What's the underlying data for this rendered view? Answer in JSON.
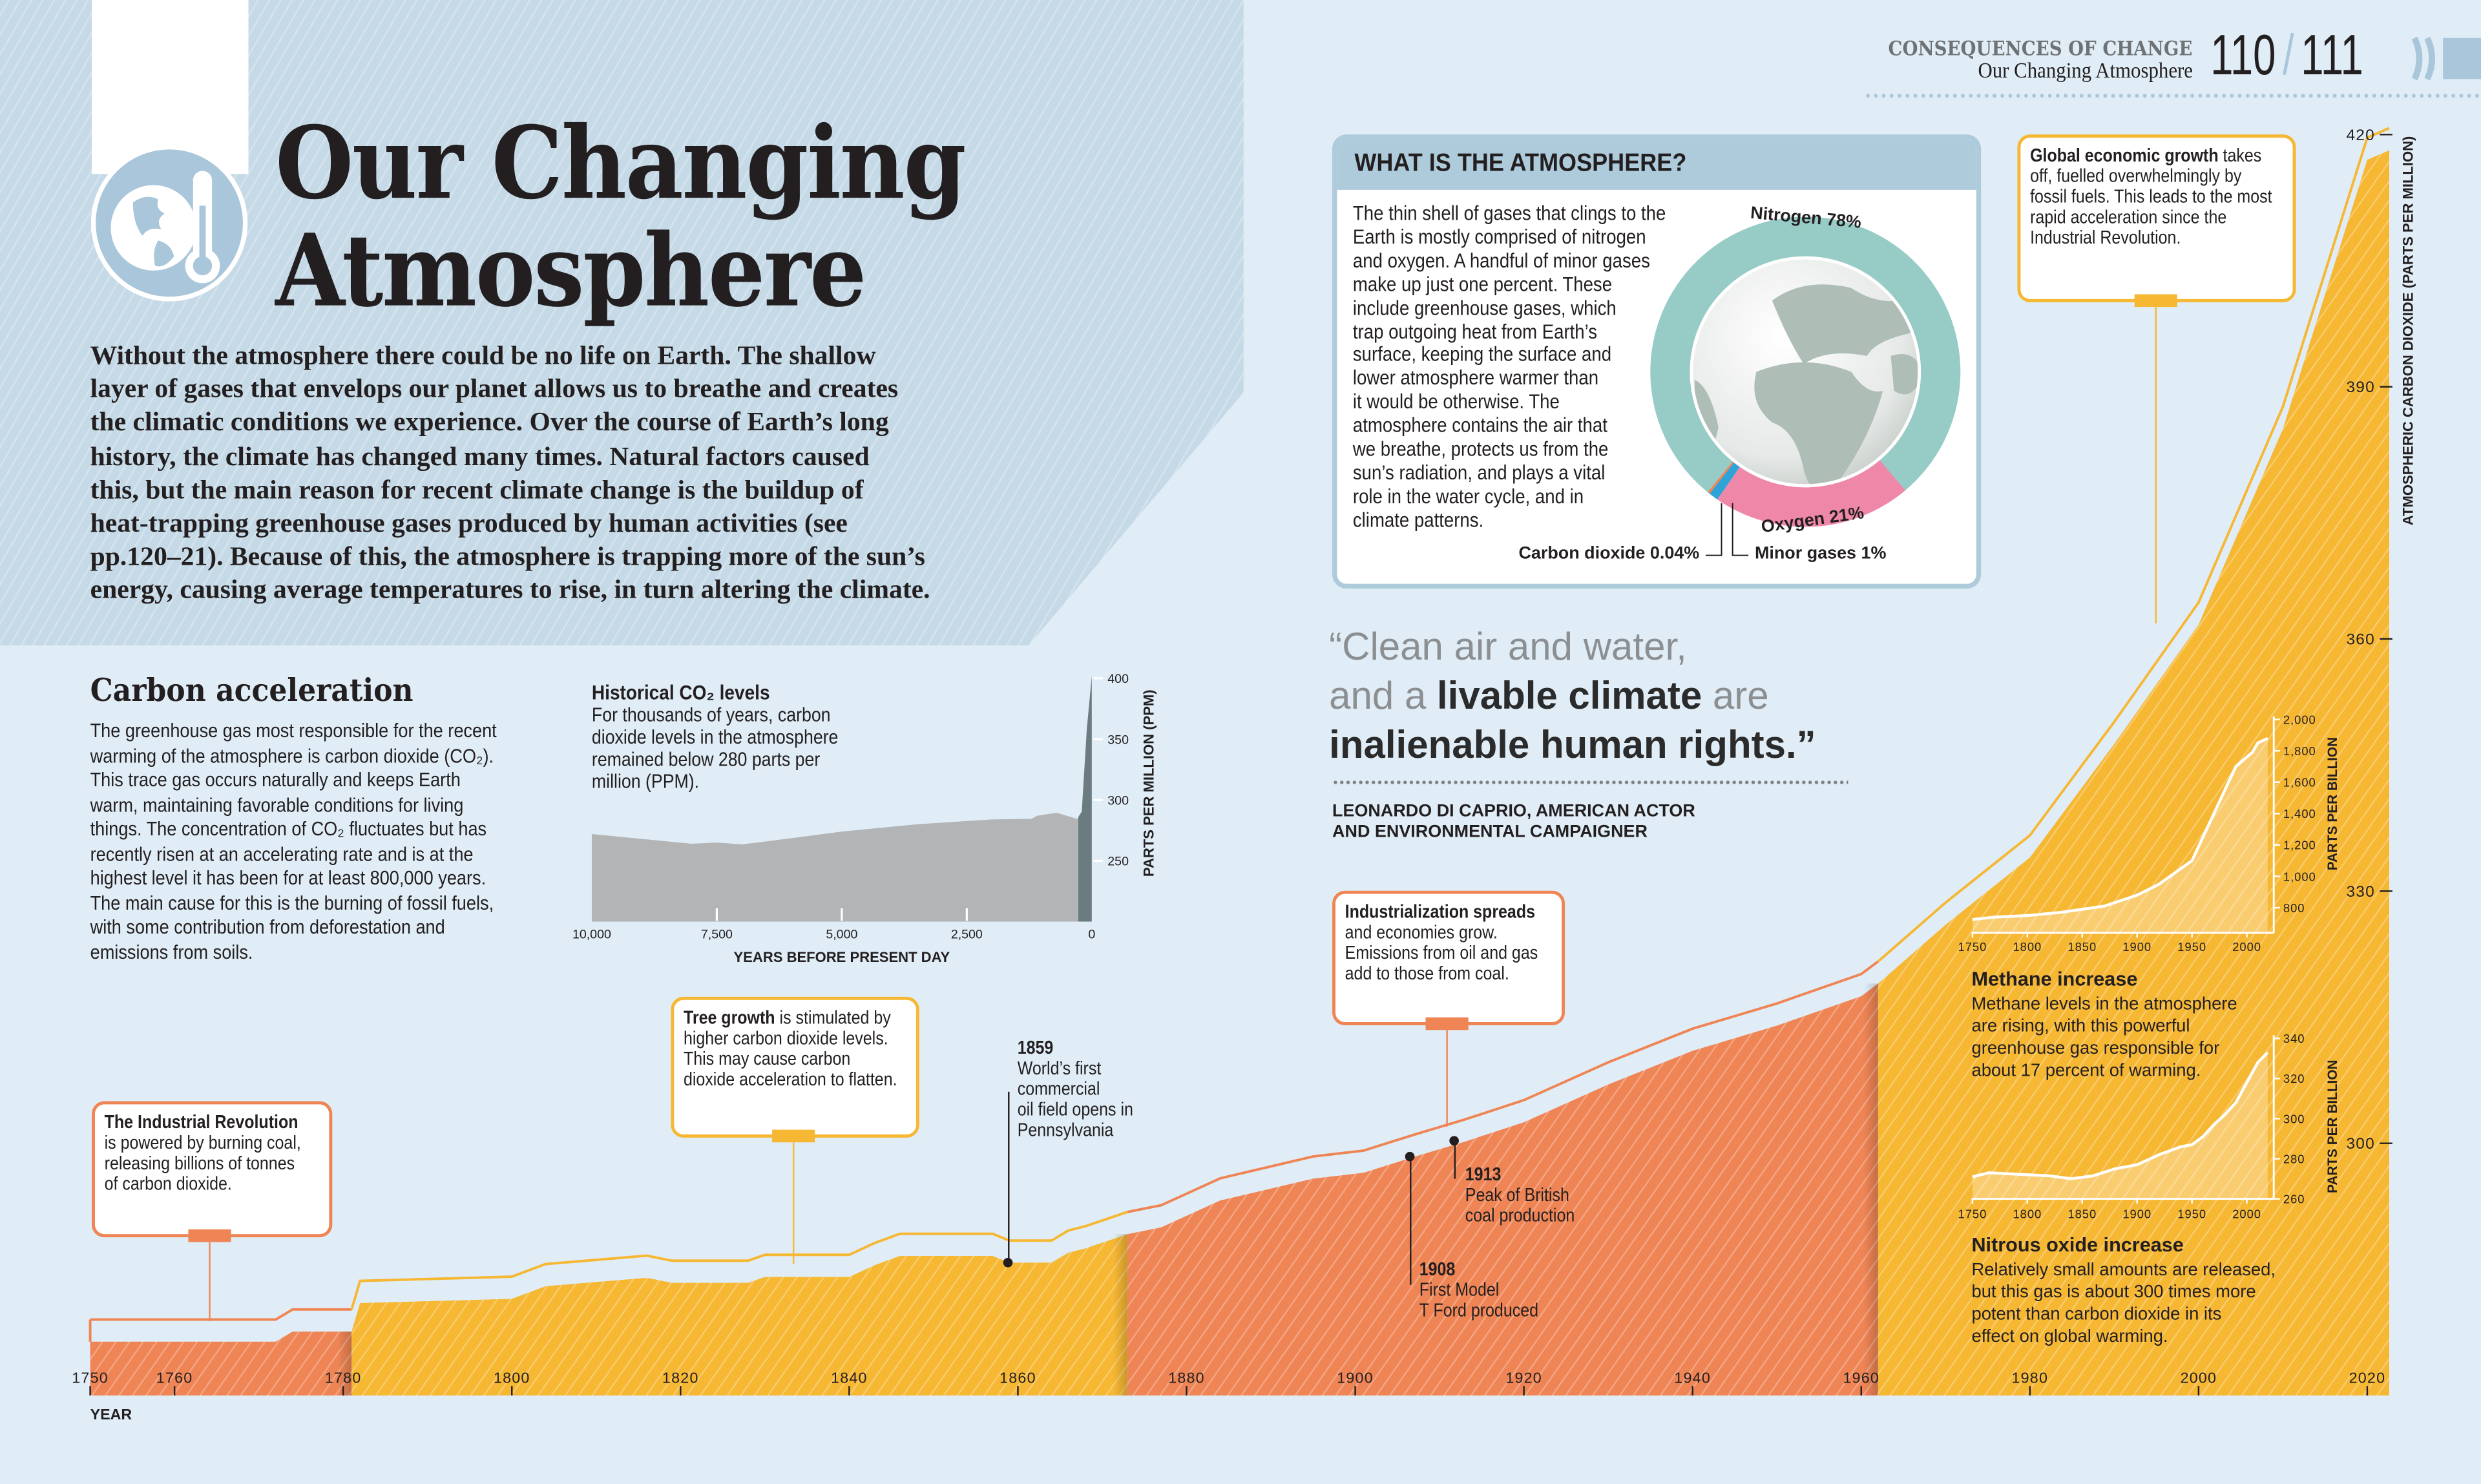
{
  "header": {
    "section": "CONSEQUENCES OF CHANGE",
    "subtitle": "Our Changing Atmosphere",
    "page_left": "110",
    "page_sep": "/",
    "page_right": "111"
  },
  "title": {
    "line1": "Our Changing",
    "line2": "Atmosphere",
    "icon": "globe-thermometer-icon"
  },
  "intro": {
    "lines": [
      "Without the atmosphere there could be no life on Earth. The shallow",
      "layer of gases that envelops our planet allows us to breathe and creates",
      "the climatic conditions we experience. Over the course of Earth’s long",
      "history, the climate has changed many times. Natural factors caused",
      "this, but the main reason for recent climate change is the buildup of",
      "heat-trapping greenhouse gases produced by human activities (see",
      "pp.120–21). Because of this, the atmosphere is trapping more of the sun’s",
      "energy, causing average temperatures to rise, in turn altering the climate."
    ]
  },
  "carbon_acceleration": {
    "heading": "Carbon acceleration",
    "lines": [
      "The greenhouse gas most responsible for the recent",
      "warming of the atmosphere is carbon dioxide (CO₂).",
      "This trace gas occurs naturally and keeps Earth",
      "warm, maintaining favorable conditions for living",
      "things. The concentration of CO₂ fluctuates but has",
      "recently risen at an accelerating rate and is at the",
      "highest level it has been for at least 800,000 years.",
      "The main cause for this is the burning of fossil fuels,",
      "with some contribution from deforestation and",
      "emissions from soils."
    ]
  },
  "historical": {
    "heading": "Historical CO₂ levels",
    "lines": [
      "For thousands of years, carbon",
      "dioxide levels in the atmosphere",
      "remained below 280 parts per",
      "million (PPM)."
    ]
  },
  "atmosphere_box": {
    "heading": "WHAT IS THE ATMOSPHERE?",
    "lines": [
      "The thin shell of gases that clings to the",
      "Earth is mostly comprised of nitrogen",
      "and oxygen. A handful of minor gases",
      "make up just one percent. These",
      "include greenhouse gases, which",
      "trap outgoing heat from Earth’s",
      "surface, keeping the surface and",
      "lower atmosphere warmer than",
      "it would be otherwise. The",
      "atmosphere contains the air that",
      "we breathe, protects us from the",
      "sun’s radiation, and plays a vital",
      "role in the water cycle, and in",
      "climate patterns."
    ]
  },
  "quote": {
    "line1": "“Clean air and water,",
    "line2_a": "and a ",
    "line2_b": "livable climate",
    "line2_c": " are",
    "line3": "inalienable human rights.”",
    "attribution_1": "LEONARDO DI CAPRIO, AMERICAN ACTOR",
    "attribution_2": "AND ENVIRONMENTAL CAMPAIGNER"
  },
  "callouts": {
    "industrial_revolution": {
      "bold": "The Industrial Revolution",
      "rest": "",
      "lines": [
        "is powered by burning coal,",
        "releasing billions of tonnes",
        "of carbon dioxide."
      ]
    },
    "tree_growth": {
      "bold": "Tree growth",
      "rest": " is stimulated by",
      "lines": [
        "higher carbon dioxide levels.",
        "This may cause carbon",
        "dioxide acceleration to flatten."
      ]
    },
    "industrialization": {
      "bold": "Industrialization spreads",
      "rest": "",
      "lines": [
        "and economies grow.",
        "Emissions from oil and gas",
        "add to those from coal."
      ]
    },
    "global_growth": {
      "bold": "Global economic growth",
      "rest": " takes",
      "lines": [
        "off, fuelled overwhelmingly by",
        "fossil fuels. This leads to the most",
        "rapid acceleration since the",
        "Industrial Revolution."
      ]
    }
  },
  "events": [
    {
      "year": "1859",
      "lines": [
        "World’s first",
        "commercial",
        "oil field opens in",
        "Pennsylvania"
      ]
    },
    {
      "year": "1913",
      "lines": [
        "Peak of British",
        "coal production"
      ]
    },
    {
      "year": "1908",
      "lines": [
        "First Model",
        "T Ford produced"
      ]
    }
  ],
  "insets": {
    "methane": {
      "heading": "Methane increase",
      "lines": [
        "Methane levels in the atmosphere",
        "are rising, with this powerful",
        "greenhouse gas responsible for",
        "about 17 percent of warming."
      ]
    },
    "nitrous_oxide": {
      "heading": "Nitrous oxide increase",
      "lines": [
        "Relatively small amounts are released,",
        "but this gas is about 300 times more",
        "potent than carbon dioxide in its",
        "effect on global warming."
      ]
    }
  },
  "colors": {
    "background": "#e0edf7",
    "orange": "#ef8454",
    "yellow": "#f6b733",
    "nitrogen": "#97cbc6",
    "oxygen": "#ef88a8",
    "minor_gases": "#2ea3d8",
    "accent_blue": "#aecbdc"
  },
  "chart_data": [
    {
      "id": "main-co2",
      "type": "area",
      "xlabel": "YEAR",
      "ylabel": "ATMOSPHERIC CARBON DIOXIDE (PARTS PER MILLION)",
      "xlim": [
        1750,
        2020
      ],
      "ylim": [
        270,
        420
      ],
      "x_ticks": [
        "1750",
        "1760",
        "1780",
        "1800",
        "1820",
        "1840",
        "1860",
        "1880",
        "1900",
        "1920",
        "1940",
        "1960",
        "1980",
        "2000",
        "2020"
      ],
      "y_ticks": [
        "300",
        "330",
        "360",
        "390",
        "420"
      ],
      "grid": false,
      "x": [
        1750,
        1772,
        1774,
        1781,
        1782,
        1800,
        1804,
        1816,
        1819,
        1828,
        1830,
        1840,
        1843,
        1846,
        1857,
        1859,
        1864,
        1866,
        1868,
        1873,
        1877,
        1884,
        1895,
        1901,
        1907,
        1913,
        1920,
        1930,
        1940,
        1950,
        1960,
        1962,
        1970,
        1980,
        1990,
        2000,
        2010,
        2020
      ],
      "y": [
        276.4,
        276.4,
        277.6,
        277.6,
        281,
        281.5,
        283,
        284,
        283.4,
        283.4,
        284.1,
        284.1,
        285.5,
        286.6,
        286.6,
        285.8,
        285.8,
        287,
        287.5,
        289.2,
        290,
        293.2,
        295.8,
        296.5,
        298.4,
        300.2,
        302.5,
        307,
        311,
        314,
        317.5,
        319,
        326,
        334,
        347.5,
        361.7,
        385,
        417
      ],
      "segments": [
        {
          "from": 1750,
          "to": 1781,
          "color": "#ef8454"
        },
        {
          "from": 1781,
          "to": 1873,
          "color": "#f6b733"
        },
        {
          "from": 1873,
          "to": 1962,
          "color": "#ef8454"
        },
        {
          "from": 1962,
          "to": 2020,
          "color": "#f6b733"
        }
      ]
    },
    {
      "id": "historical-co2",
      "type": "area",
      "title": "Historical CO₂ levels",
      "xlabel": "YEARS BEFORE PRESENT DAY",
      "ylabel": "PARTS PER MILLION (PPM)",
      "xlim": [
        10000,
        0
      ],
      "ylim": [
        200,
        400
      ],
      "x_ticks": [
        {
          "value": 10000,
          "label": "10,000"
        },
        {
          "value": 7500,
          "label": "7,500"
        },
        {
          "value": 5000,
          "label": "5,000"
        },
        {
          "value": 2500,
          "label": "2,500"
        },
        {
          "value": 0,
          "label": "0"
        }
      ],
      "y_ticks": [
        {
          "value": 400,
          "label": "400"
        },
        {
          "value": 350,
          "label": "350"
        },
        {
          "value": 300,
          "label": "300"
        },
        {
          "value": 250,
          "label": "250"
        }
      ],
      "series": [
        {
          "color": "#b3b4b5",
          "x": [
            10000,
            8000,
            7500,
            7000,
            6500,
            5000,
            4500,
            3500,
            2000,
            1200,
            1100,
            700,
            300,
            270
          ],
          "y": [
            272,
            264,
            265,
            263.5,
            266,
            274,
            276,
            280,
            284,
            284.5,
            287,
            289.5,
            284.5,
            285
          ]
        },
        {
          "color": "#6b7c80",
          "x": [
            270,
            200,
            100,
            0
          ],
          "y": [
            286,
            290.4,
            358,
            402
          ]
        }
      ]
    },
    {
      "id": "methane",
      "type": "area",
      "ylabel": "PARTS PER BILLION",
      "xlim": [
        1750,
        2020
      ],
      "ylim": [
        640,
        2000
      ],
      "x_ticks": [
        "1750",
        "1800",
        "1850",
        "1900",
        "1950",
        "2000"
      ],
      "y_ticks": [
        "800",
        "1,000",
        "1,200",
        "1,400",
        "1,600",
        "1,800",
        "2,000"
      ],
      "x": [
        1750,
        1770,
        1800,
        1830,
        1850,
        1870,
        1900,
        1920,
        1940,
        1950,
        1960,
        1970,
        1980,
        1990,
        2000,
        2005,
        2010,
        2019
      ],
      "y": [
        725,
        740,
        750,
        770,
        790,
        810,
        880,
        950,
        1050,
        1100,
        1250,
        1400,
        1550,
        1700,
        1760,
        1790,
        1850,
        1880
      ]
    },
    {
      "id": "nitrous-oxide",
      "type": "area",
      "ylabel": "PARTS PER BILLION",
      "xlim": [
        1750,
        2020
      ],
      "ylim": [
        260,
        340
      ],
      "x_ticks": [
        "1750",
        "1800",
        "1850",
        "1900",
        "1950",
        "2000"
      ],
      "y_ticks": [
        "260",
        "280",
        "300",
        "320",
        "340"
      ],
      "x": [
        1750,
        1765,
        1800,
        1820,
        1840,
        1860,
        1880,
        1900,
        1920,
        1940,
        1950,
        1960,
        1970,
        1980,
        1990,
        2000,
        2010,
        2019
      ],
      "y": [
        271,
        273,
        272,
        271.5,
        270,
        271.5,
        275,
        277,
        282,
        286,
        287,
        291,
        297,
        302,
        308,
        318,
        328,
        333
      ]
    },
    {
      "id": "atmosphere-composition",
      "type": "pie",
      "slices": [
        {
          "name": "Oxygen",
          "label": "Oxygen 21%",
          "value": 21,
          "color": "#ef88a8"
        },
        {
          "name": "Minor gases",
          "label": "Minor gases 1%",
          "value": 1,
          "color": "#2ea3d8"
        },
        {
          "name": "Carbon dioxide",
          "label": "Carbon dioxide 0.04%",
          "value": 0.04,
          "color": "#ef8454"
        },
        {
          "name": "Nitrogen",
          "label": "Nitrogen 78%",
          "value": 78,
          "color": "#97cbc6"
        }
      ]
    }
  ]
}
